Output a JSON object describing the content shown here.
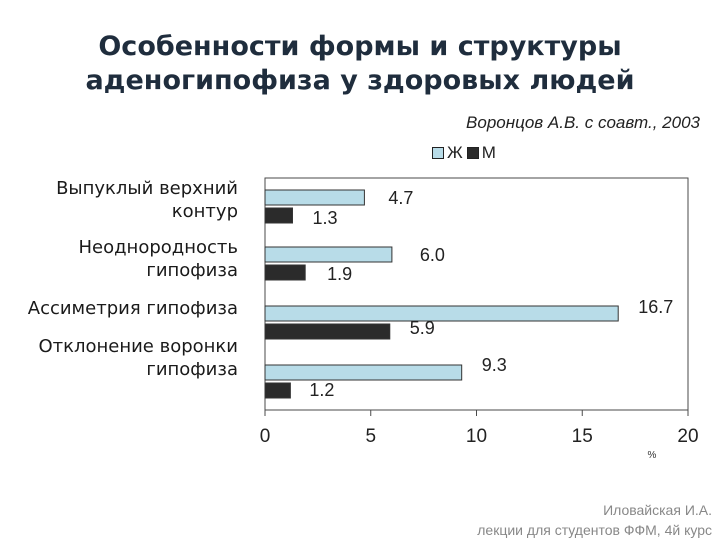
{
  "slide": {
    "title_line1": "Особенности формы и структуры",
    "title_line2": "аденогипофиза у здоровых людей",
    "source": "Воронцов А.В. с соавт., 2003",
    "footer_line1": "Иловайская И.А.",
    "footer_line2": "лекции для студентов ФФМ, 4й курс"
  },
  "chart_data": {
    "type": "bar",
    "orientation": "horizontal",
    "title": "Особенности формы и структуры аденогипофиза у здоровых людей",
    "categories": [
      [
        "Выпуклый верхний",
        "контур"
      ],
      [
        "Неоднородность",
        "гипофиза"
      ],
      [
        "Ассиметрия гипофиза"
      ],
      [
        "Отклонение воронки",
        "гипофиза"
      ]
    ],
    "series": [
      {
        "name": "Ж",
        "color": "#b8dce8",
        "values": [
          4.7,
          6.0,
          16.7,
          9.3
        ],
        "labels": [
          "4.7",
          "6.0",
          "16.7",
          "9.3"
        ]
      },
      {
        "name": "М",
        "color": "#2b2b2b",
        "values": [
          1.3,
          1.9,
          5.9,
          1.2
        ],
        "labels": [
          "1.3",
          "1.9",
          "5.9",
          "1.2"
        ]
      }
    ],
    "xlim": [
      0,
      20
    ],
    "xticks": [
      "0",
      "5",
      "10",
      "15",
      "20"
    ],
    "xlabel": "%",
    "legend": "top-right"
  }
}
